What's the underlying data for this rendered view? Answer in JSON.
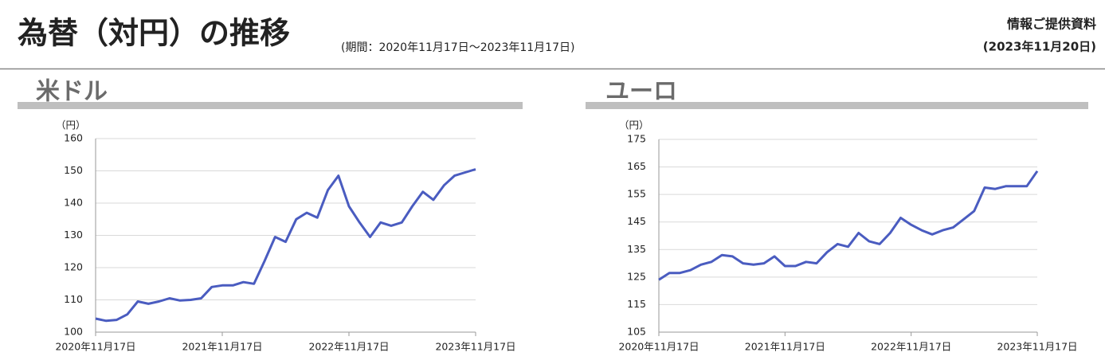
{
  "header": {
    "title": "為替（対円）の推移",
    "period": "(期間：2020年11月17日～2023年11月17日)",
    "note": "情報ご提供資料",
    "date": "(2023年11月20日)"
  },
  "chart_data": [
    {
      "type": "line",
      "title": "米ドル",
      "y_unit": "（円）",
      "color": "#4a5cc0",
      "categories": [
        "2020年11月17日",
        null,
        null,
        null,
        null,
        null,
        null,
        null,
        null,
        null,
        null,
        null,
        "2021年11月17日",
        null,
        null,
        null,
        null,
        null,
        null,
        null,
        null,
        null,
        null,
        null,
        "2022年11月17日",
        null,
        null,
        null,
        null,
        null,
        null,
        null,
        null,
        null,
        null,
        null,
        "2023年11月17日"
      ],
      "values": [
        104.2,
        103.5,
        103.8,
        105.5,
        109.5,
        108.8,
        109.5,
        110.5,
        109.8,
        110,
        110.5,
        114,
        114.5,
        114.5,
        115.5,
        115,
        122,
        129.5,
        128,
        135,
        137,
        135.5,
        144,
        148.5,
        139,
        134,
        129.5,
        134,
        133,
        134,
        139,
        143.5,
        141,
        145.5,
        148.5,
        149.5,
        150.5
      ],
      "ylim": [
        100,
        160
      ],
      "yticks": [
        100,
        110,
        120,
        130,
        140,
        150,
        160
      ],
      "grid": true
    },
    {
      "type": "line",
      "title": "ユーロ",
      "y_unit": "（円）",
      "color": "#4a5cc0",
      "categories": [
        "2020年11月17日",
        null,
        null,
        null,
        null,
        null,
        null,
        null,
        null,
        null,
        null,
        null,
        "2021年11月17日",
        null,
        null,
        null,
        null,
        null,
        null,
        null,
        null,
        null,
        null,
        null,
        "2022年11月17日",
        null,
        null,
        null,
        null,
        null,
        null,
        null,
        null,
        null,
        null,
        null,
        "2023年11月17日"
      ],
      "values": [
        124,
        126.5,
        126.5,
        127.5,
        129.5,
        130.5,
        133,
        132.5,
        130,
        129.5,
        130,
        132.5,
        129,
        129,
        130.5,
        130,
        134,
        137,
        136,
        141,
        138,
        137,
        141,
        146.5,
        144,
        142,
        140.5,
        142,
        143,
        146,
        149,
        157.5,
        157,
        158,
        158,
        158,
        163.5
      ],
      "ylim": [
        105,
        175
      ],
      "yticks": [
        105,
        115,
        125,
        135,
        145,
        155,
        165,
        175
      ],
      "grid": true
    }
  ]
}
